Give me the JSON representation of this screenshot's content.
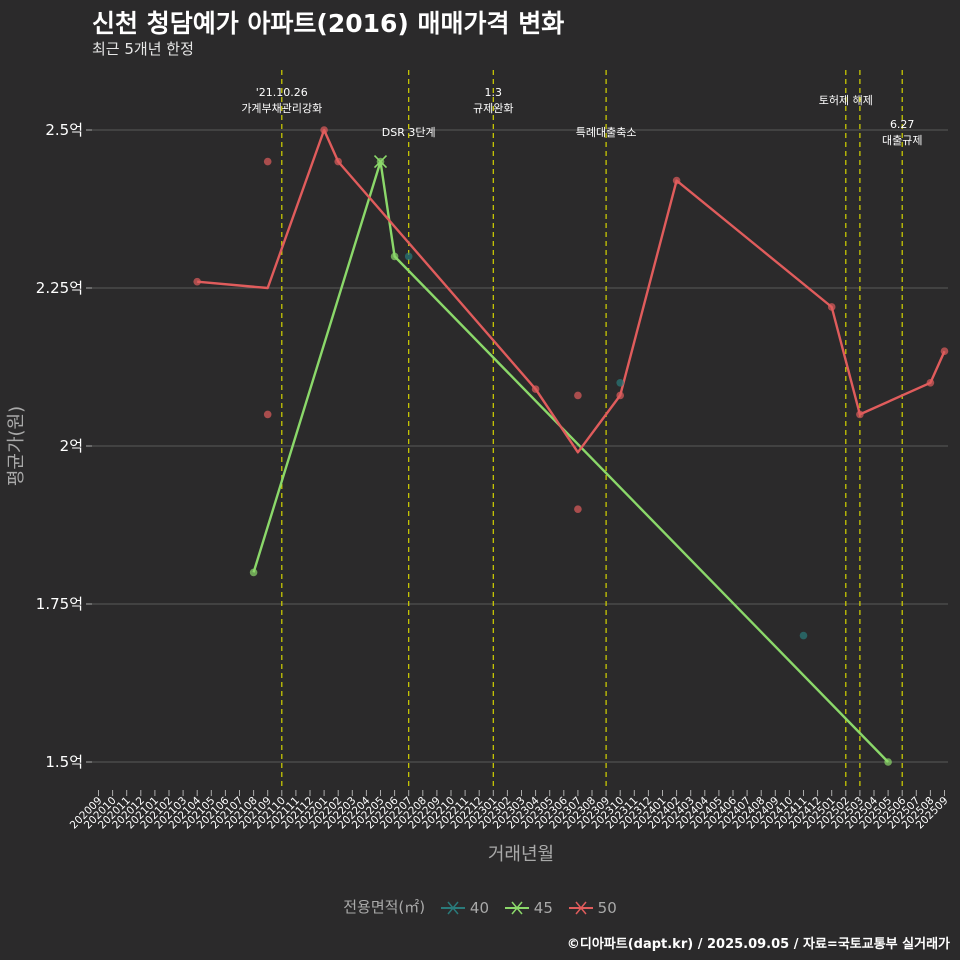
{
  "chart_data": {
    "type": "line",
    "title": "신천 청담예가 아파트(2016) 매매가격 변화",
    "subtitle": "최근 5개년 한정",
    "xlabel": "거래년월",
    "ylabel": "평균가(원)",
    "ylim": [
      1.43,
      2.59
    ],
    "y_ticks": [
      {
        "value": 1.5,
        "label": "1.5억"
      },
      {
        "value": 1.75,
        "label": "1.75억"
      },
      {
        "value": 2.0,
        "label": "2억"
      },
      {
        "value": 2.25,
        "label": "2.25억"
      },
      {
        "value": 2.5,
        "label": "2.5억"
      }
    ],
    "categories": [
      "202009",
      "202010",
      "202011",
      "202012",
      "202101",
      "202102",
      "202103",
      "202104",
      "202105",
      "202106",
      "202107",
      "202108",
      "202109",
      "202110",
      "202111",
      "202112",
      "202201",
      "202202",
      "202203",
      "202204",
      "202205",
      "202206",
      "202207",
      "202208",
      "202209",
      "202210",
      "202211",
      "202212",
      "202301",
      "202302",
      "202303",
      "202304",
      "202305",
      "202306",
      "202307",
      "202308",
      "202309",
      "202310",
      "202311",
      "202312",
      "202401",
      "202402",
      "202403",
      "202404",
      "202405",
      "202406",
      "202407",
      "202408",
      "202409",
      "202410",
      "202411",
      "202412",
      "202501",
      "202502",
      "202503",
      "202504",
      "202505",
      "202506",
      "202507",
      "202508",
      "202509"
    ],
    "tick_labels": [
      "202009",
      "202010",
      "202011",
      "202012",
      "202101",
      "202102",
      "202103",
      "202104",
      "202105",
      "202106",
      "202107",
      "202108",
      "202109",
      "202110",
      "202111",
      "202112",
      "202201",
      "202202",
      "202203",
      "202204",
      "202205",
      "202206",
      "202207",
      "202208",
      "202209",
      "202210",
      "202211",
      "202212",
      "202301",
      "202302",
      "202303",
      "202304",
      "202305",
      "202306",
      "202307",
      "202308",
      "202309",
      "202310",
      "202311",
      "202312",
      "202401",
      "202402",
      "202403",
      "202404",
      "202405",
      "202406",
      "202407",
      "202408",
      "202409",
      "202410",
      "202411",
      "202412",
      "202501",
      "202502",
      "202503",
      "202504",
      "202505",
      "202506",
      "202507",
      "202508",
      "202509"
    ],
    "events": [
      {
        "x": "202110",
        "lines": [
          "'21.10.26",
          "가계부채관리강화"
        ]
      },
      {
        "x": "202207",
        "lines": [
          "DSR 3단계"
        ]
      },
      {
        "x": "202301",
        "lines": [
          "1.3",
          "규제완화"
        ]
      },
      {
        "x": "202309",
        "lines": [
          "특례대출축소"
        ]
      },
      {
        "x": "202502",
        "lines": [
          "토허제 해제"
        ]
      },
      {
        "x": "202503",
        "lines": []
      },
      {
        "x": "202506",
        "lines": [
          "6.27",
          "대출규제"
        ]
      }
    ],
    "series": [
      {
        "name": "40",
        "color": "#2a7a7a",
        "line": [],
        "points": [
          {
            "x": "202207",
            "y": 2.3
          },
          {
            "x": "202310",
            "y": 2.1
          },
          {
            "x": "202411",
            "y": 1.7
          }
        ]
      },
      {
        "name": "45",
        "color": "#8bd86a",
        "line": [
          {
            "x": "202108",
            "y": 1.8
          },
          {
            "x": "202205",
            "y": 2.45
          },
          {
            "x": "202206",
            "y": 2.3
          },
          {
            "x": "202505",
            "y": 1.5
          }
        ],
        "points": [
          {
            "x": "202108",
            "y": 1.8
          },
          {
            "x": "202205",
            "y": 2.45
          },
          {
            "x": "202206",
            "y": 2.3
          },
          {
            "x": "202505",
            "y": 1.5
          }
        ]
      },
      {
        "name": "50",
        "color": "#e05c5c",
        "line": [
          {
            "x": "202104",
            "y": 2.26
          },
          {
            "x": "202109",
            "y": 2.25
          },
          {
            "x": "202201",
            "y": 2.5
          },
          {
            "x": "202202",
            "y": 2.45
          },
          {
            "x": "202304",
            "y": 2.09
          },
          {
            "x": "202307",
            "y": 1.99
          },
          {
            "x": "202310",
            "y": 2.08
          },
          {
            "x": "202402",
            "y": 2.42
          },
          {
            "x": "202501",
            "y": 2.22
          },
          {
            "x": "202503",
            "y": 2.05
          },
          {
            "x": "202508",
            "y": 2.1
          },
          {
            "x": "202509",
            "y": 2.15
          }
        ],
        "points": [
          {
            "x": "202104",
            "y": 2.26
          },
          {
            "x": "202109",
            "y": 2.45
          },
          {
            "x": "202109",
            "y": 2.05
          },
          {
            "x": "202201",
            "y": 2.5
          },
          {
            "x": "202202",
            "y": 2.45
          },
          {
            "x": "202304",
            "y": 2.09
          },
          {
            "x": "202307",
            "y": 2.08
          },
          {
            "x": "202307",
            "y": 1.9
          },
          {
            "x": "202310",
            "y": 2.08
          },
          {
            "x": "202402",
            "y": 2.42
          },
          {
            "x": "202501",
            "y": 2.22
          },
          {
            "x": "202503",
            "y": 2.05
          },
          {
            "x": "202508",
            "y": 2.1
          },
          {
            "x": "202509",
            "y": 2.15
          }
        ]
      }
    ]
  },
  "legend": {
    "title": "전용면적(㎡)",
    "items": [
      {
        "label": "40",
        "color": "#2a7a7a"
      },
      {
        "label": "45",
        "color": "#8bd86a"
      },
      {
        "label": "50",
        "color": "#e05c5c"
      }
    ]
  },
  "caption": "©디아파트(dapt.kr) / 2025.09.05 / 자료=국토교통부 실거래가",
  "colors": {
    "background": "#2b2a2b",
    "grid": "#5a5a5a",
    "event_line": "#d4d400",
    "axis_text": "#ffffff",
    "axis_title": "#a9a9a9"
  }
}
